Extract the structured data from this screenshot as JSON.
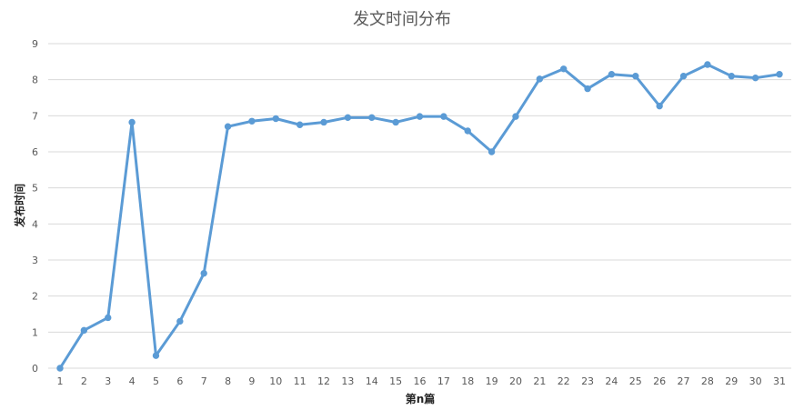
{
  "chart_data": {
    "type": "line",
    "title": "发文时间分布",
    "xlabel": "第n篇",
    "ylabel": "发布时间",
    "ylim": [
      0,
      9
    ],
    "yticks": [
      0,
      1,
      2,
      3,
      4,
      5,
      6,
      7,
      8,
      9
    ],
    "grid": true,
    "legend": "none",
    "categories": [
      "1",
      "2",
      "3",
      "4",
      "5",
      "6",
      "7",
      "8",
      "9",
      "10",
      "11",
      "12",
      "13",
      "14",
      "15",
      "16",
      "17",
      "18",
      "19",
      "20",
      "21",
      "22",
      "23",
      "24",
      "25",
      "26",
      "27",
      "28",
      "29",
      "30",
      "31"
    ],
    "series": [
      {
        "color": "#5b9bd5",
        "values": [
          0,
          1.05,
          1.4,
          6.82,
          0.35,
          1.3,
          2.63,
          6.7,
          6.85,
          6.92,
          6.75,
          6.82,
          6.95,
          6.95,
          6.82,
          6.98,
          6.98,
          6.58,
          6.0,
          6.98,
          8.02,
          8.3,
          7.75,
          8.15,
          8.1,
          7.27,
          8.1,
          8.42,
          8.1,
          8.05,
          8.15
        ]
      }
    ]
  }
}
